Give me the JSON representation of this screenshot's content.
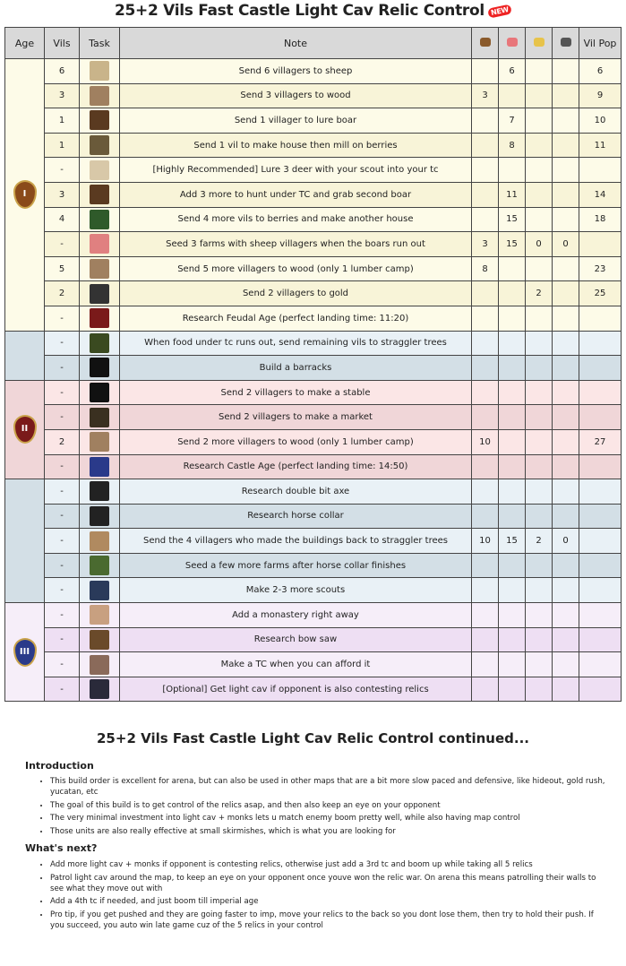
{
  "title": "25+2 Vils Fast Castle Light Cav Relic Control",
  "new_badge": "NEW",
  "headers": {
    "age": "Age",
    "vils": "Vils",
    "task": "Task",
    "note": "Note",
    "wood_icon": "wood-icon",
    "food_icon": "food-icon",
    "gold_icon": "gold-icon",
    "stone_icon": "stone-icon",
    "pop": "Vil Pop"
  },
  "colors": {
    "dark": [
      "#fdfbe8",
      "#f8f4d8"
    ],
    "feudal_blue": [
      "#d3dfe6",
      "#e9f1f6"
    ],
    "feudal": [
      "#f0d6d8",
      "#fbe6e6"
    ],
    "castle": [
      "#d3dfe6",
      "#e9f1f6"
    ],
    "imperial": [
      "#f6eef9",
      "#eedff3"
    ]
  },
  "groups": [
    {
      "age": "I",
      "age_icon": "dark-age-icon",
      "color": "dark",
      "rows": [
        {
          "vils": "6",
          "icon": "sheep-icon",
          "note": "Send 6 villagers to sheep",
          "wood": "",
          "food": "6",
          "gold": "",
          "stone": "",
          "pop": "6"
        },
        {
          "vils": "3",
          "icon": "wood-axe-icon",
          "note": "Send 3 villagers to wood",
          "wood": "3",
          "food": "",
          "gold": "",
          "stone": "",
          "pop": "9"
        },
        {
          "vils": "1",
          "icon": "boar-icon",
          "note": "Send 1 villager to lure boar",
          "wood": "",
          "food": "7",
          "gold": "",
          "stone": "",
          "pop": "10"
        },
        {
          "vils": "1",
          "icon": "house-icon",
          "note": "Send 1 vil to make house then mill on berries",
          "wood": "",
          "food": "8",
          "gold": "",
          "stone": "",
          "pop": "11"
        },
        {
          "vils": "-",
          "icon": "deer-icon",
          "note": "[Highly Recommended] Lure 3 deer with your scout into your tc",
          "wood": "",
          "food": "",
          "gold": "",
          "stone": "",
          "pop": ""
        },
        {
          "vils": "3",
          "icon": "boar-icon",
          "note": "Add 3 more to hunt under TC and grab second boar",
          "wood": "",
          "food": "11",
          "gold": "",
          "stone": "",
          "pop": "14"
        },
        {
          "vils": "4",
          "icon": "berries-icon",
          "note": "Send 4 more vils to berries and make another house",
          "wood": "",
          "food": "15",
          "gold": "",
          "stone": "",
          "pop": "18"
        },
        {
          "vils": "-",
          "icon": "meat-icon",
          "note": "Seed 3 farms with sheep villagers when the boars run out",
          "wood": "3",
          "food": "15",
          "gold": "0",
          "stone": "0",
          "pop": ""
        },
        {
          "vils": "5",
          "icon": "wood-axe-icon",
          "note": "Send 5 more villagers to wood (only 1 lumber camp)",
          "wood": "8",
          "food": "",
          "gold": "",
          "stone": "",
          "pop": "23"
        },
        {
          "vils": "2",
          "icon": "gold-mining-icon",
          "note": "Send 2 villagers to gold",
          "wood": "",
          "food": "",
          "gold": "2",
          "stone": "",
          "pop": "25"
        },
        {
          "vils": "-",
          "icon": "feudal-age-icon",
          "note": "Research Feudal Age (perfect landing time: 11:20)",
          "wood": "",
          "food": "",
          "gold": "",
          "stone": "",
          "pop": ""
        }
      ]
    },
    {
      "age": "",
      "age_icon": "",
      "color": "feudal_blue",
      "rows": [
        {
          "vils": "-",
          "icon": "tree-icon",
          "note": "When food under tc runs out, send remaining vils to straggler trees",
          "wood": "",
          "food": "",
          "gold": "",
          "stone": "",
          "pop": ""
        },
        {
          "vils": "-",
          "icon": "crossed-swords-icon",
          "note": "Build a barracks",
          "wood": "",
          "food": "",
          "gold": "",
          "stone": "",
          "pop": ""
        }
      ]
    },
    {
      "age": "II",
      "age_icon": "feudal-age-icon",
      "color": "feudal",
      "rows": [
        {
          "vils": "-",
          "icon": "horseshoe-icon",
          "note": "Send 2 villagers to make a stable",
          "wood": "",
          "food": "",
          "gold": "",
          "stone": "",
          "pop": ""
        },
        {
          "vils": "-",
          "icon": "scales-icon",
          "note": "Send 2 villagers to make a market",
          "wood": "",
          "food": "",
          "gold": "",
          "stone": "",
          "pop": ""
        },
        {
          "vils": "2",
          "icon": "wood-axe-icon",
          "note": "Send 2 more villagers to wood (only 1 lumber camp)",
          "wood": "10",
          "food": "",
          "gold": "",
          "stone": "",
          "pop": "27"
        },
        {
          "vils": "-",
          "icon": "castle-age-icon",
          "note": "Research Castle Age (perfect landing time: 14:50)",
          "wood": "",
          "food": "",
          "gold": "",
          "stone": "",
          "pop": ""
        }
      ]
    },
    {
      "age": "",
      "age_icon": "",
      "color": "castle",
      "rows": [
        {
          "vils": "-",
          "icon": "double-bit-axe-icon",
          "note": "Research double bit axe",
          "wood": "",
          "food": "",
          "gold": "",
          "stone": "",
          "pop": ""
        },
        {
          "vils": "-",
          "icon": "horse-collar-icon",
          "note": "Research horse collar",
          "wood": "",
          "food": "",
          "gold": "",
          "stone": "",
          "pop": ""
        },
        {
          "vils": "-",
          "icon": "wood-log-icon",
          "note": "Send the 4 villagers who made the buildings back to straggler trees",
          "wood": "10",
          "food": "15",
          "gold": "2",
          "stone": "0",
          "pop": ""
        },
        {
          "vils": "-",
          "icon": "farm-icon",
          "note": "Seed a few more farms after horse collar finishes",
          "wood": "",
          "food": "",
          "gold": "",
          "stone": "",
          "pop": ""
        },
        {
          "vils": "-",
          "icon": "scout-icon",
          "note": "Make 2-3 more scouts",
          "wood": "",
          "food": "",
          "gold": "",
          "stone": "",
          "pop": ""
        }
      ]
    },
    {
      "age": "III",
      "age_icon": "castle-age-icon",
      "color": "imperial",
      "rows": [
        {
          "vils": "-",
          "icon": "praying-hands-icon",
          "note": "Add a monastery right away",
          "wood": "",
          "food": "",
          "gold": "",
          "stone": "",
          "pop": ""
        },
        {
          "vils": "-",
          "icon": "bow-saw-icon",
          "note": "Research bow saw",
          "wood": "",
          "food": "",
          "gold": "",
          "stone": "",
          "pop": ""
        },
        {
          "vils": "-",
          "icon": "villagers-icon",
          "note": "Make a TC when you can afford it",
          "wood": "",
          "food": "",
          "gold": "",
          "stone": "",
          "pop": ""
        },
        {
          "vils": "-",
          "icon": "light-cavalry-icon",
          "note": "[Optional] Get light cav if opponent is also contesting relics",
          "wood": "",
          "food": "",
          "gold": "",
          "stone": "",
          "pop": ""
        }
      ]
    }
  ],
  "continued": {
    "title": "25+2 Vils Fast Castle Light Cav Relic Control continued...",
    "intro_heading": "Introduction",
    "intro": [
      "This build order is excellent for arena, but can also be used in other maps that are a bit more slow paced and defensive, like hideout, gold rush, yucatan, etc",
      "The goal of this build is to get control of the relics asap, and then also keep an eye on your opponent",
      "The very minimal investment into light cav + monks lets u match enemy boom pretty well, while also having map control",
      "Those units are also really effective at small skirmishes, which is what you are looking for"
    ],
    "next_heading": "What's next?",
    "next": [
      "Add more light cav + monks if opponent is contesting relics, otherwise just add a 3rd tc and boom up while taking all 5 relics",
      "Patrol light cav around the map, to keep an eye on your opponent once youve won the relic war. On arena this means patrolling their walls to see what they move out with",
      "Add a 4th tc if needed, and just boom till imperial age",
      "Pro tip, if you get pushed and they are going faster to imp, move your relics to the back so you dont lose them, then try to hold their push. If you succeed, you auto win late game cuz of the 5 relics in your control"
    ]
  }
}
